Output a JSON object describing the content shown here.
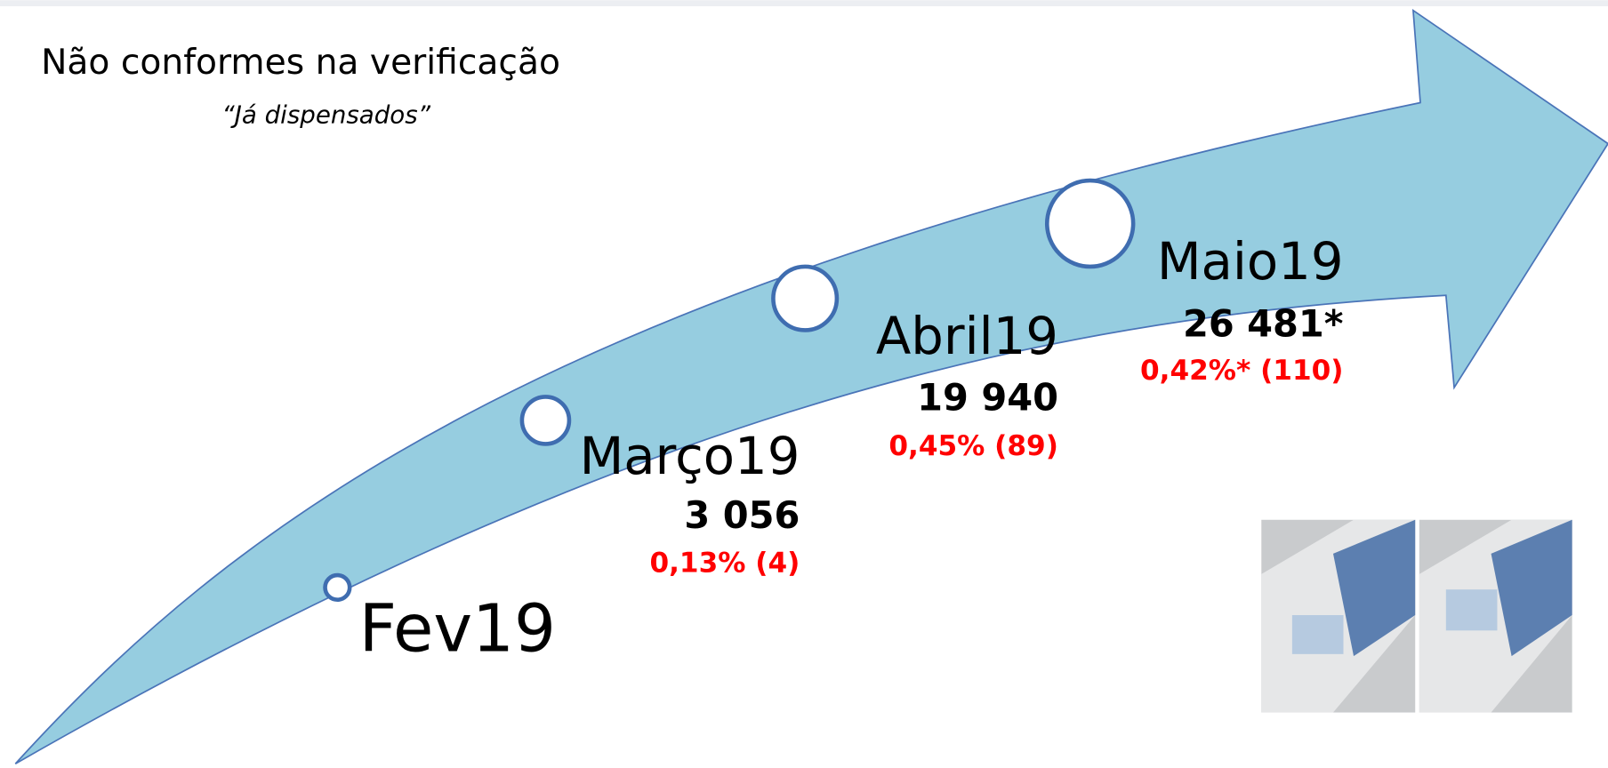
{
  "header": {
    "title": "Não conformes na verificação",
    "subtitle": "“Já dispensados”"
  },
  "milestones": [
    {
      "label": "Fev19"
    },
    {
      "label": "Março19",
      "count": "3 056",
      "rate": "0,13% (4)"
    },
    {
      "label": "Abril19",
      "count": "19 940",
      "rate": "0,45% (89)"
    },
    {
      "label": "Maio19",
      "count": "26 481*",
      "rate": "0,42%* (110)"
    }
  ]
}
